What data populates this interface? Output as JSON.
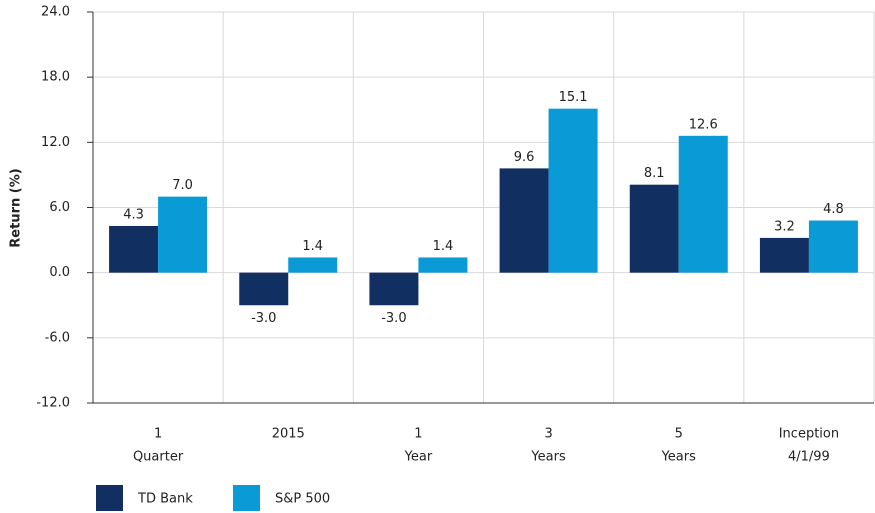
{
  "chart_data": {
    "type": "bar",
    "y_label": "Return (%)",
    "categories": [
      [
        "1",
        "Quarter"
      ],
      [
        "2015"
      ],
      [
        "1",
        "Year"
      ],
      [
        "3",
        "Years"
      ],
      [
        "5",
        "Years"
      ],
      [
        "Inception",
        "4/1/99"
      ]
    ],
    "series": [
      {
        "name": "TD Bank",
        "color": "#122f62",
        "values": [
          4.3,
          -3.0,
          -3.0,
          9.6,
          8.1,
          3.2
        ],
        "value_labels": [
          "4.3",
          "-3.0",
          "-3.0",
          "9.6",
          "8.1",
          "3.2"
        ]
      },
      {
        "name": "S&P 500",
        "color": "#0a9ad6",
        "values": [
          7.0,
          1.4,
          1.4,
          15.1,
          12.6,
          4.8
        ],
        "value_labels": [
          "7.0",
          "1.4",
          "1.4",
          "15.1",
          "12.6",
          "4.8"
        ]
      }
    ],
    "ylim": [
      -12,
      24
    ],
    "yticks": [
      {
        "value": -12,
        "label": "-12.0"
      },
      {
        "value": -6,
        "label": "-6.0"
      },
      {
        "value": 0,
        "label": "0.0"
      },
      {
        "value": 6,
        "label": "6.0"
      },
      {
        "value": 12,
        "label": "12.0"
      },
      {
        "value": 18,
        "label": "18.0"
      },
      {
        "value": 24,
        "label": "24.0"
      }
    ],
    "grid": true
  }
}
